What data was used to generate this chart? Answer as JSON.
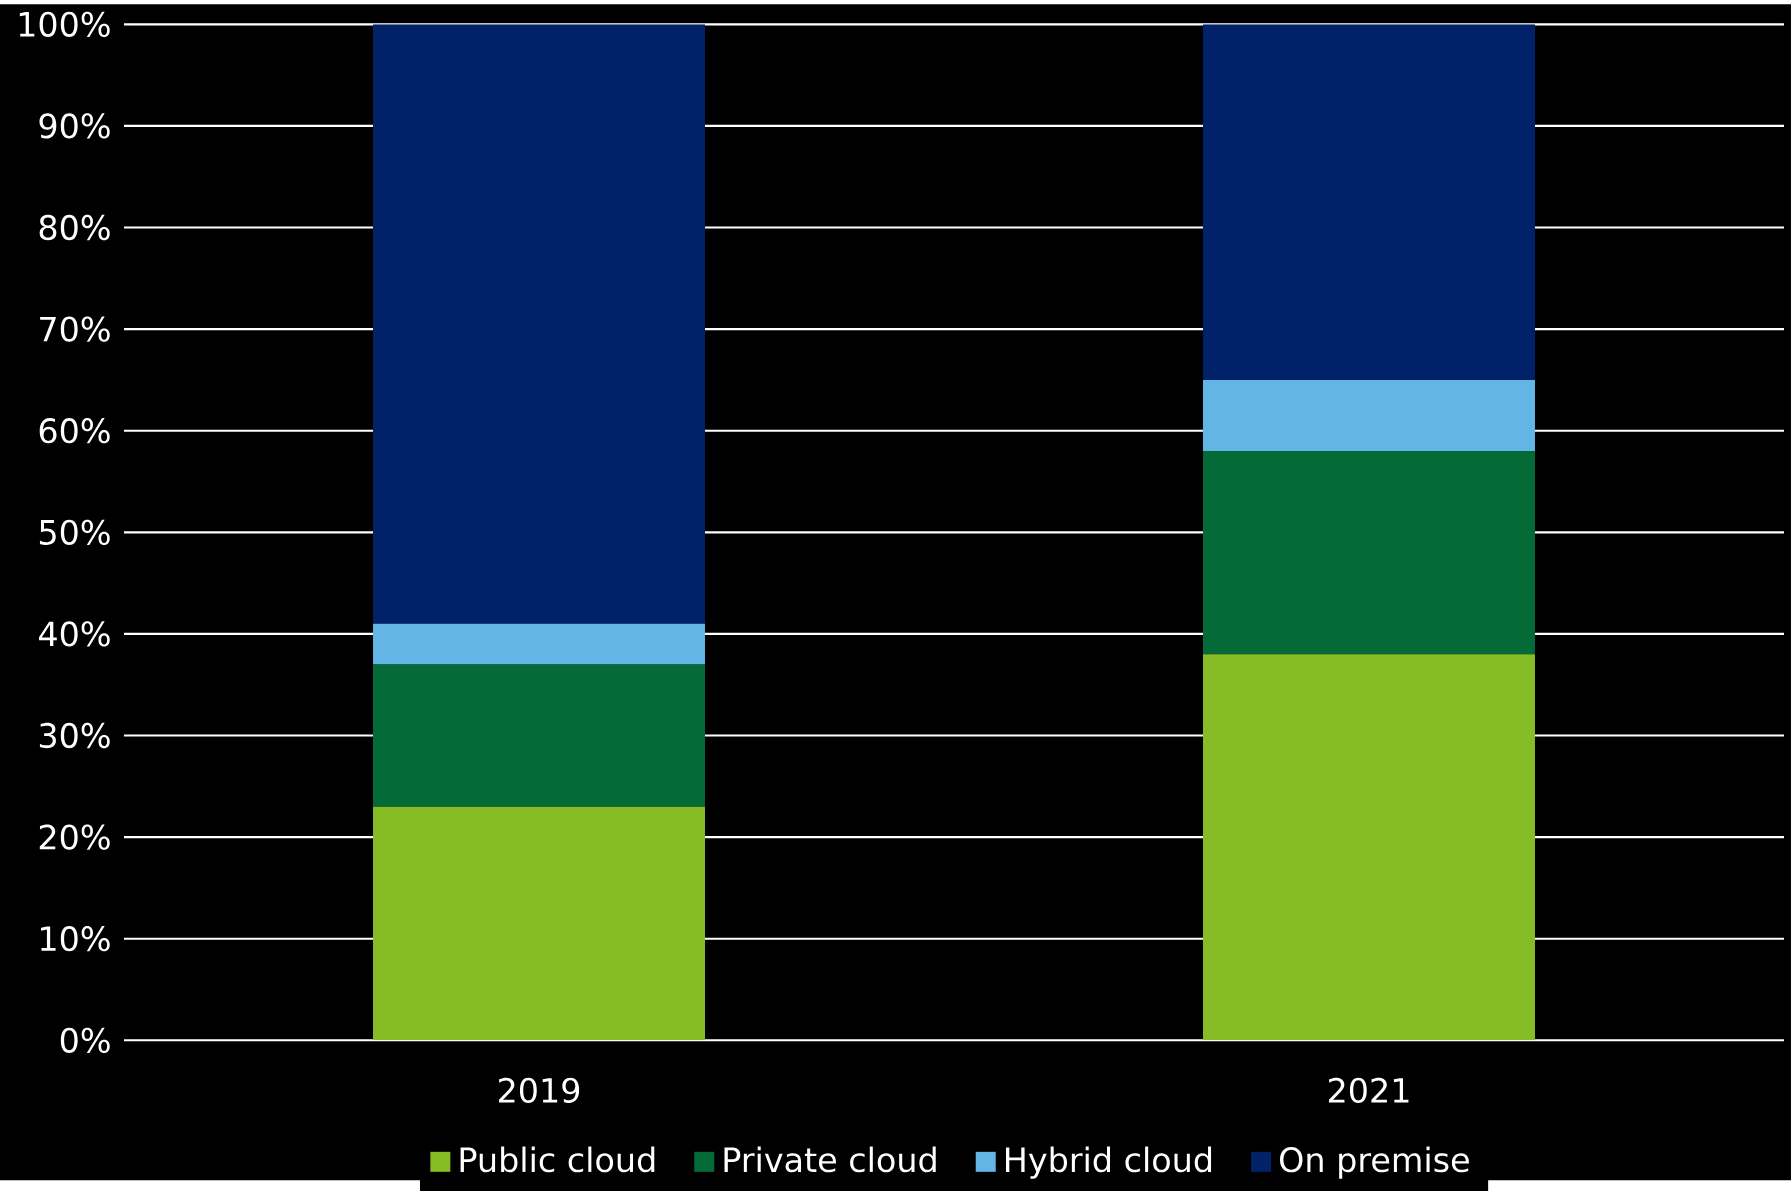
{
  "chart_data": {
    "type": "bar",
    "stacked": true,
    "categories": [
      "2019",
      "2021"
    ],
    "series": [
      {
        "name": "Public cloud",
        "color": "#86bc25",
        "values": [
          23,
          38
        ]
      },
      {
        "name": "Private cloud",
        "color": "#046a38",
        "values": [
          14,
          20
        ]
      },
      {
        "name": "Hybrid cloud",
        "color": "#62b5e5",
        "values": [
          4,
          7
        ]
      },
      {
        "name": "On premise",
        "color": "#012169",
        "values": [
          59,
          35
        ]
      }
    ],
    "ylim": [
      0,
      100
    ],
    "yticks": [
      {
        "value": 0,
        "label": "0%"
      },
      {
        "value": 10,
        "label": "10%"
      },
      {
        "value": 20,
        "label": "20%"
      },
      {
        "value": 30,
        "label": "30%"
      },
      {
        "value": 40,
        "label": "40%"
      },
      {
        "value": 50,
        "label": "50%"
      },
      {
        "value": 60,
        "label": "60%"
      },
      {
        "value": 70,
        "label": "70%"
      },
      {
        "value": 80,
        "label": "80%"
      },
      {
        "value": 90,
        "label": "90%"
      },
      {
        "value": 100,
        "label": "100%"
      }
    ],
    "grid": "y",
    "legend": "bottom"
  }
}
